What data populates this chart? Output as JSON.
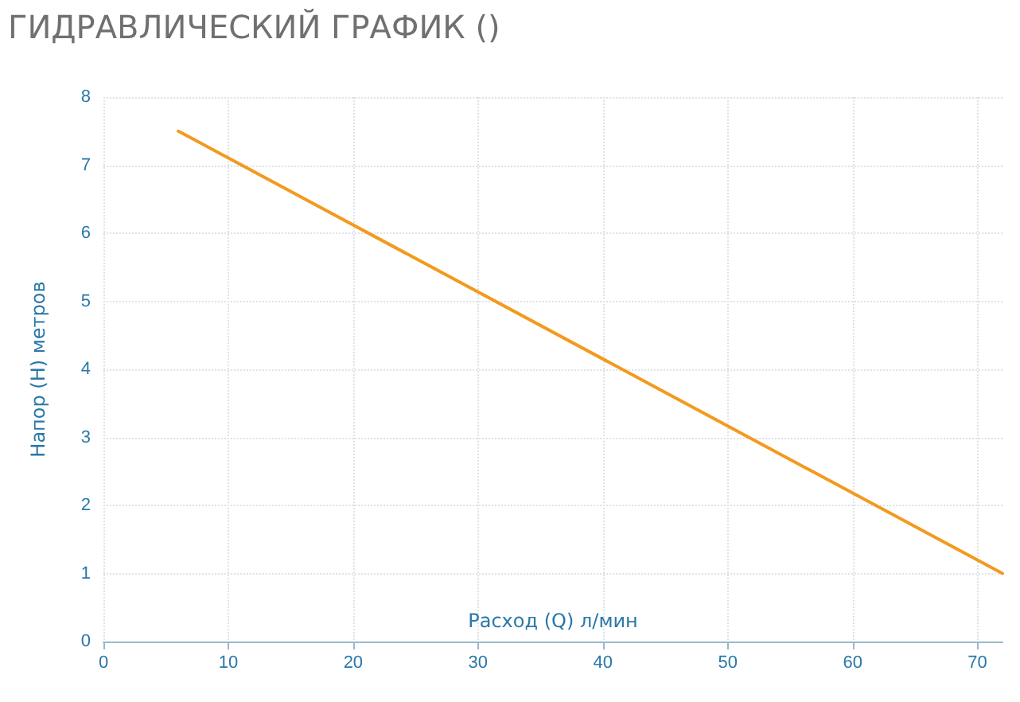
{
  "chart_data": {
    "type": "line",
    "title": "ГИДРАВЛИЧЕСКИЙ ГРАФИК ()",
    "xlabel": "Расход (Q) л/мин",
    "ylabel": "Напор (H) метров",
    "x": [
      6,
      72
    ],
    "series": [
      {
        "color": "#f39a1e",
        "values": [
          7.5,
          1
        ]
      }
    ],
    "xlim": [
      0,
      72
    ],
    "xticks": [
      0,
      10,
      20,
      30,
      40,
      50,
      60,
      70
    ],
    "ylim": [
      0,
      8
    ],
    "yticks": [
      0,
      1,
      2,
      3,
      4,
      5,
      6,
      7,
      8
    ],
    "grid": true,
    "marker": "none",
    "line_style": "solid"
  }
}
